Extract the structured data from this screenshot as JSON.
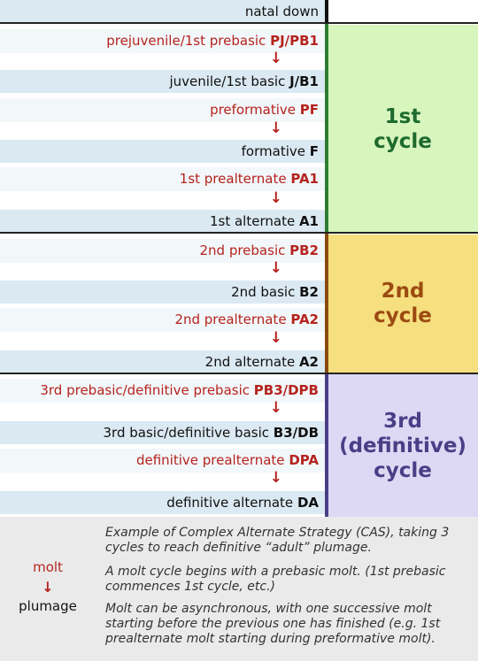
{
  "rows": [
    {
      "kind": "plumage",
      "text": "natal down",
      "code": ""
    },
    {
      "kind": "molt",
      "text": "prejuvenile/1st prebasic ",
      "code": "PJ/PB1"
    },
    {
      "kind": "plumage",
      "text": "juvenile/1st basic ",
      "code": "J/B1"
    },
    {
      "kind": "molt",
      "text": "preformative ",
      "code": "PF"
    },
    {
      "kind": "plumage",
      "text": "formative ",
      "code": "F"
    },
    {
      "kind": "molt",
      "text": "1st prealternate ",
      "code": "PA1"
    },
    {
      "kind": "plumage",
      "text": "1st alternate ",
      "code": "A1"
    },
    {
      "kind": "molt",
      "text": "2nd prebasic ",
      "code": "PB2"
    },
    {
      "kind": "plumage",
      "text": "2nd basic ",
      "code": "B2"
    },
    {
      "kind": "molt",
      "text": "2nd prealternate ",
      "code": "PA2"
    },
    {
      "kind": "plumage",
      "text": "2nd alternate ",
      "code": "A2"
    },
    {
      "kind": "molt",
      "text": "3rd prebasic/definitive prebasic ",
      "code": "PB3/DPB"
    },
    {
      "kind": "plumage",
      "text": "3rd basic/definitive basic ",
      "code": "B3/DB"
    },
    {
      "kind": "molt",
      "text": "definitive prealternate ",
      "code": "DPA"
    },
    {
      "kind": "plumage",
      "text": "definitive alternate ",
      "code": "DA"
    }
  ],
  "arrow_glyph": "↓",
  "cycles": [
    {
      "line1": "1st",
      "line2": "cycle",
      "line3": "",
      "bg": "#d7f5bd",
      "text_color": "#1e6b2e",
      "bar_color": "#2e7d32"
    },
    {
      "line1": "2nd",
      "line2": "cycle",
      "line3": "",
      "bg": "#f5df7e",
      "text_color": "#9c4a12",
      "bar_color": "#8a4a12"
    },
    {
      "line1": "3rd",
      "line2": "(definitive)",
      "line3": "cycle",
      "bg": "#ddd8f4",
      "text_color": "#4a3f86",
      "bar_color": "#4a3f86"
    }
  ],
  "legend": {
    "molt_label": "molt",
    "arrow": "↓",
    "plumage_label": "plumage",
    "notes": [
      "Example of Complex Alternate Strategy (CAS), taking 3 cycles to reach definitive “adult” plumage.",
      "A molt cycle begins with a prebasic molt. (1st prebasic commences 1st cycle, etc.)",
      "Molt can be asynchronous, with one successive molt starting before the previous one has finished (e.g. 1st prealternate molt starting during preformative molt)."
    ]
  }
}
